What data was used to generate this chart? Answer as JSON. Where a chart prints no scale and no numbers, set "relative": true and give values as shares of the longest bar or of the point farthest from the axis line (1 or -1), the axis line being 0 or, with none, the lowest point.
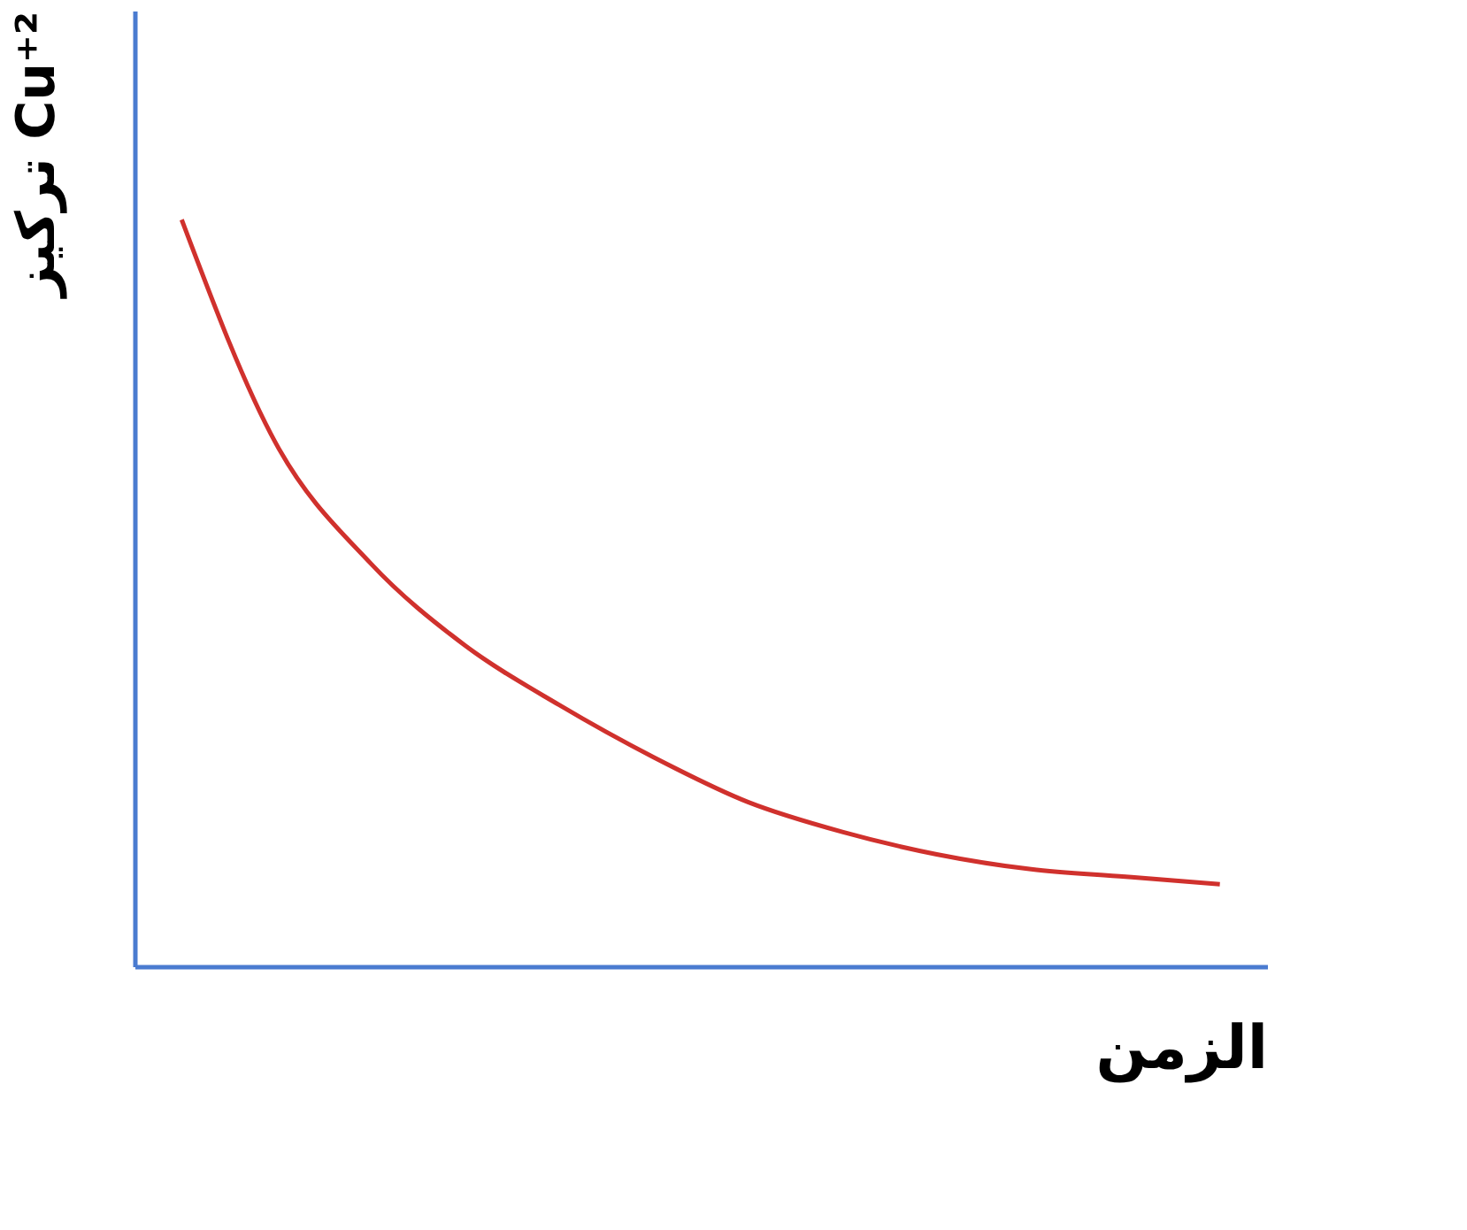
{
  "chart_data": {
    "type": "line",
    "relative": true,
    "xlabel": "الزمن",
    "ylabel": "تركيز Cu⁺²",
    "categories": [
      null,
      null,
      null,
      null,
      null,
      null,
      null,
      null,
      null,
      null,
      null,
      null
    ],
    "series": [
      {
        "color": "#d0312d",
        "values": [
          1,
          0.7,
          0.54,
          0.43,
          0.35,
          0.28,
          0.22,
          0.18,
          0.15,
          0.13,
          0.12,
          0.11
        ]
      }
    ],
    "grid": false,
    "marker": "none",
    "line_style": "solid"
  }
}
